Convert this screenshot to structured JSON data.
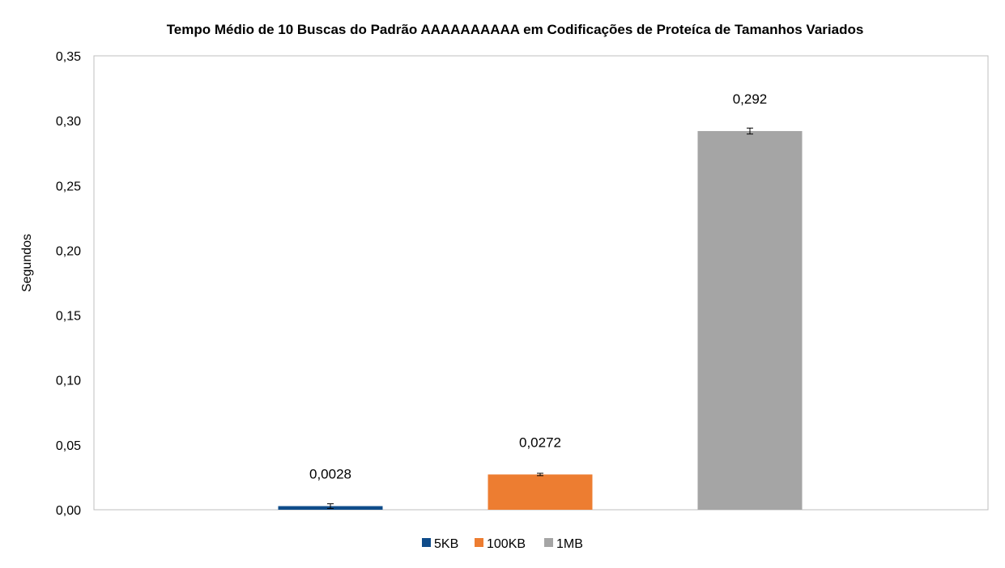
{
  "chart_data": {
    "type": "bar",
    "title": "Tempo Médio de 10 Buscas do Padrão AAAAAAAAAA em Codificações de Proteíca de Tamanhos Variados",
    "xlabel": "",
    "ylabel": "Segundos",
    "ylim": [
      0,
      0.35
    ],
    "yticks": [
      "0,00",
      "0,05",
      "0,10",
      "0,15",
      "0,20",
      "0,25",
      "0,30",
      "0,35"
    ],
    "ytick_values": [
      0,
      0.05,
      0.1,
      0.15,
      0.2,
      0.25,
      0.3,
      0.35
    ],
    "grid": false,
    "legend_position": "bottom",
    "series": [
      {
        "name": "5KB",
        "value": 0.0028,
        "label": "0,0028",
        "error": 0.0018,
        "color": "#0f4c8a"
      },
      {
        "name": "100KB",
        "value": 0.0272,
        "label": "0,0272",
        "error": 0.0009,
        "color": "#ed7d31"
      },
      {
        "name": "1MB",
        "value": 0.292,
        "label": "0,292",
        "error": 0.0023,
        "color": "#a5a5a5"
      }
    ]
  }
}
